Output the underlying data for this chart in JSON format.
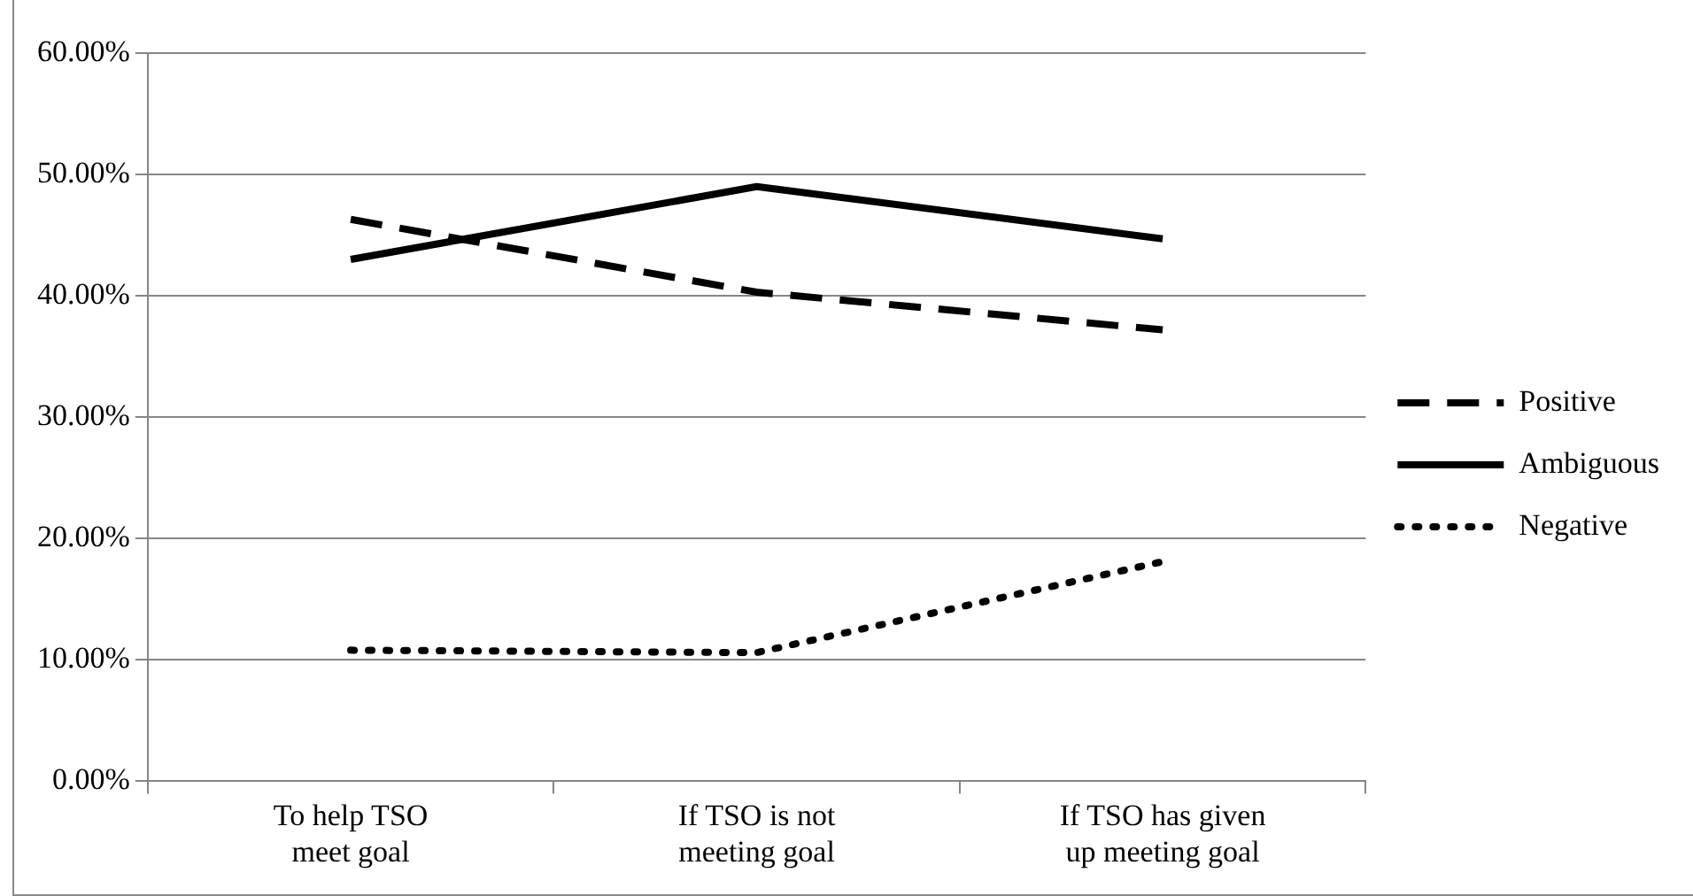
{
  "chart_data": {
    "type": "line",
    "categories": [
      "To help TSO meet goal",
      "If TSO is not meeting goal",
      "If TSO has given up meeting goal"
    ],
    "series": [
      {
        "name": "Positive",
        "color": "#000000",
        "line_style": "dashed",
        "values": [
          46.3,
          40.3,
          37.2
        ]
      },
      {
        "name": "Ambiguous",
        "color": "#000000",
        "line_style": "solid",
        "values": [
          43.0,
          49.0,
          44.7
        ]
      },
      {
        "name": "Negative",
        "color": "#000000",
        "line_style": "dotted",
        "values": [
          10.8,
          10.6,
          18.1
        ]
      }
    ],
    "ylim": [
      0,
      60
    ],
    "yticks": [
      {
        "value": 0,
        "label": "0.00%"
      },
      {
        "value": 10,
        "label": "10.00%"
      },
      {
        "value": 20,
        "label": "20.00%"
      },
      {
        "value": 30,
        "label": "30.00%"
      },
      {
        "value": 40,
        "label": "40.00%"
      },
      {
        "value": 50,
        "label": "50.00%"
      },
      {
        "value": 60,
        "label": "60.00%"
      }
    ],
    "grid": "y",
    "legend": "right",
    "marker": "none"
  }
}
